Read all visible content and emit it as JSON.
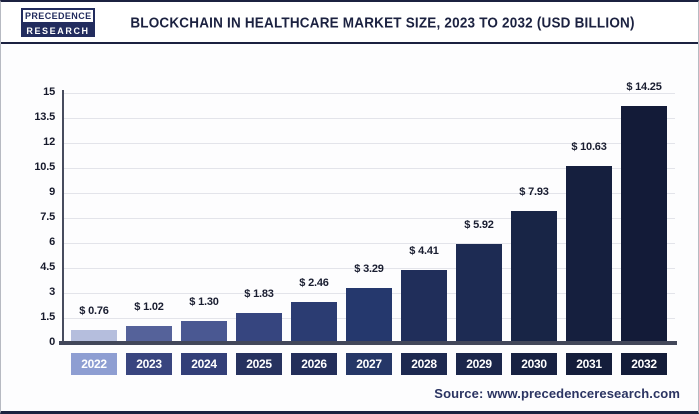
{
  "header": {
    "logo": {
      "line1": "PRECEDENCE",
      "line2": "RESEARCH"
    },
    "title": "BLOCKCHAIN IN HEALTHCARE MARKET SIZE, 2023 TO 2032 (USD BILLION)"
  },
  "footer": {
    "source": "Source: www.precedenceresearch.com"
  },
  "chart_data": {
    "type": "bar",
    "title": "Blockchain in Healthcare Market Size, 2023 to 2032 (USD Billion)",
    "unit": "USD Billion",
    "categories": [
      "2022",
      "2023",
      "2024",
      "2025",
      "2026",
      "2027",
      "2028",
      "2029",
      "2030",
      "2031",
      "2032"
    ],
    "values": [
      0.76,
      1.02,
      1.3,
      1.83,
      2.46,
      3.29,
      4.41,
      5.92,
      7.93,
      10.63,
      14.25
    ],
    "value_labels": [
      "$ 0.76",
      "$ 1.02",
      "$ 1.30",
      "$ 1.83",
      "$ 2.46",
      "$ 3.29",
      "$ 4.41",
      "$ 5.92",
      "$ 7.93",
      "$ 10.63",
      "$ 14.25"
    ],
    "bar_colors": [
      "#b5bedd",
      "#55629a",
      "#4a5892",
      "#36457f",
      "#2b3c72",
      "#25386d",
      "#202e5a",
      "#1d2b53",
      "#182546",
      "#151f3e",
      "#131b38"
    ],
    "axis_label_colors": [
      "#8e9ed2",
      "#39457f",
      "#333f78",
      "#27325f",
      "#232e5a",
      "#253767",
      "#1d2950",
      "#1b264b",
      "#172142",
      "#141d3b",
      "#131c39"
    ],
    "xlabel": "",
    "ylabel": "",
    "ylim": [
      0,
      15
    ],
    "yticks": [
      0,
      1.5,
      3,
      4.5,
      6,
      7.5,
      9,
      10.5,
      12,
      13.5,
      15
    ],
    "ytick_labels": [
      "0",
      "1.5",
      "3",
      "4.5",
      "6",
      "7.5",
      "9",
      "10.5",
      "12",
      "13.5",
      "15"
    ],
    "grid": true,
    "legend": "none",
    "colors": {
      "accent_navy": "#1b2140",
      "gridline": "#e3e4ea",
      "axis": "#42475a",
      "value_label_text": "#191d30",
      "x_label_text": "#ffffff"
    }
  }
}
